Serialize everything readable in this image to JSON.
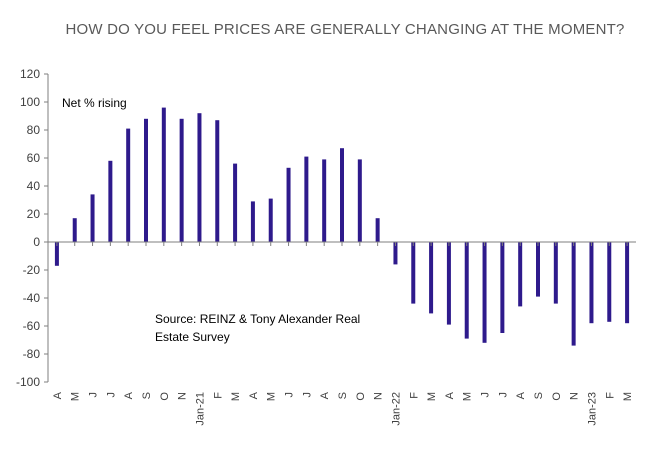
{
  "chart_data": {
    "type": "bar",
    "title": "HOW DO YOU FEEL PRICES ARE GENERALLY CHANGING AT THE MOMENT?",
    "series_label": "Net % rising",
    "source_note": [
      "Source: REINZ & Tony Alexander Real",
      "Estate Survey"
    ],
    "categories": [
      "A",
      "M",
      "J",
      "J",
      "A",
      "S",
      "O",
      "N",
      "Jan-21",
      "F",
      "M",
      "A",
      "M",
      "J",
      "J",
      "A",
      "S",
      "O",
      "N",
      "Jan-22",
      "F",
      "M",
      "A",
      "M",
      "J",
      "J",
      "A",
      "S",
      "O",
      "N",
      "Jan-23",
      "F",
      "M"
    ],
    "values": [
      -17,
      17,
      34,
      58,
      81,
      88,
      96,
      88,
      92,
      87,
      56,
      29,
      31,
      53,
      61,
      59,
      67,
      59,
      17,
      -16,
      -44,
      -51,
      -59,
      -69,
      -72,
      -65,
      -46,
      -39,
      -44,
      -74,
      -58,
      -57,
      -58
    ],
    "ylim": [
      -100,
      120
    ],
    "yticks": [
      -100,
      -80,
      -60,
      -40,
      -20,
      0,
      20,
      40,
      60,
      80,
      100,
      120
    ],
    "grid": false,
    "colors": {
      "bar": "#2e1a8c",
      "axis": "#7f7f7f",
      "text": "#404040"
    }
  }
}
